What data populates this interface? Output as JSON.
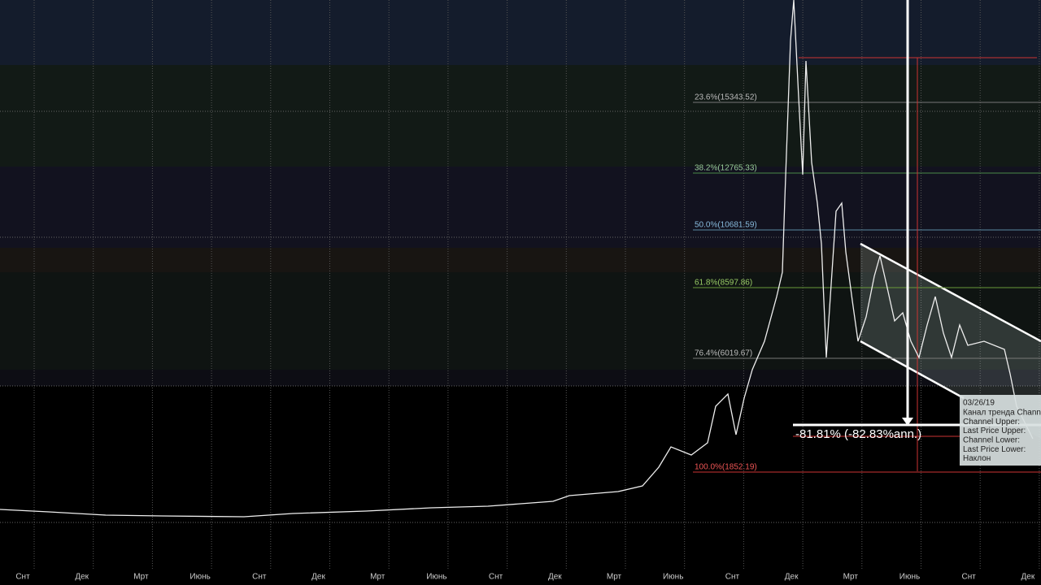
{
  "fib_levels": [
    "23.6%(15343.52)",
    "38.2%(12765.33)",
    "50.0%(10681.59)",
    "61.8%(8597.86)",
    "76.4%(6019.67)",
    "100.0%(1852.19)"
  ],
  "x_axis_labels": [
    "Снт",
    "Дек",
    "Мрт",
    "Июнь",
    "Снт",
    "Дек",
    "Мрт",
    "Июнь",
    "Снт",
    "Дек",
    "Мрт",
    "Июнь",
    "Снт",
    "Дек",
    "Мрт",
    "Июнь",
    "Снт",
    "Дек"
  ],
  "change_annotation": "-81.81% (-82.83%ann.)",
  "tooltip": {
    "date": "03/26/19",
    "lines": [
      "Канал тренда Chann",
      "Channel Upper:",
      "Last Price Upper:",
      "Channel Lower:",
      "Last Price Lower:",
      "Наклон"
    ]
  }
}
